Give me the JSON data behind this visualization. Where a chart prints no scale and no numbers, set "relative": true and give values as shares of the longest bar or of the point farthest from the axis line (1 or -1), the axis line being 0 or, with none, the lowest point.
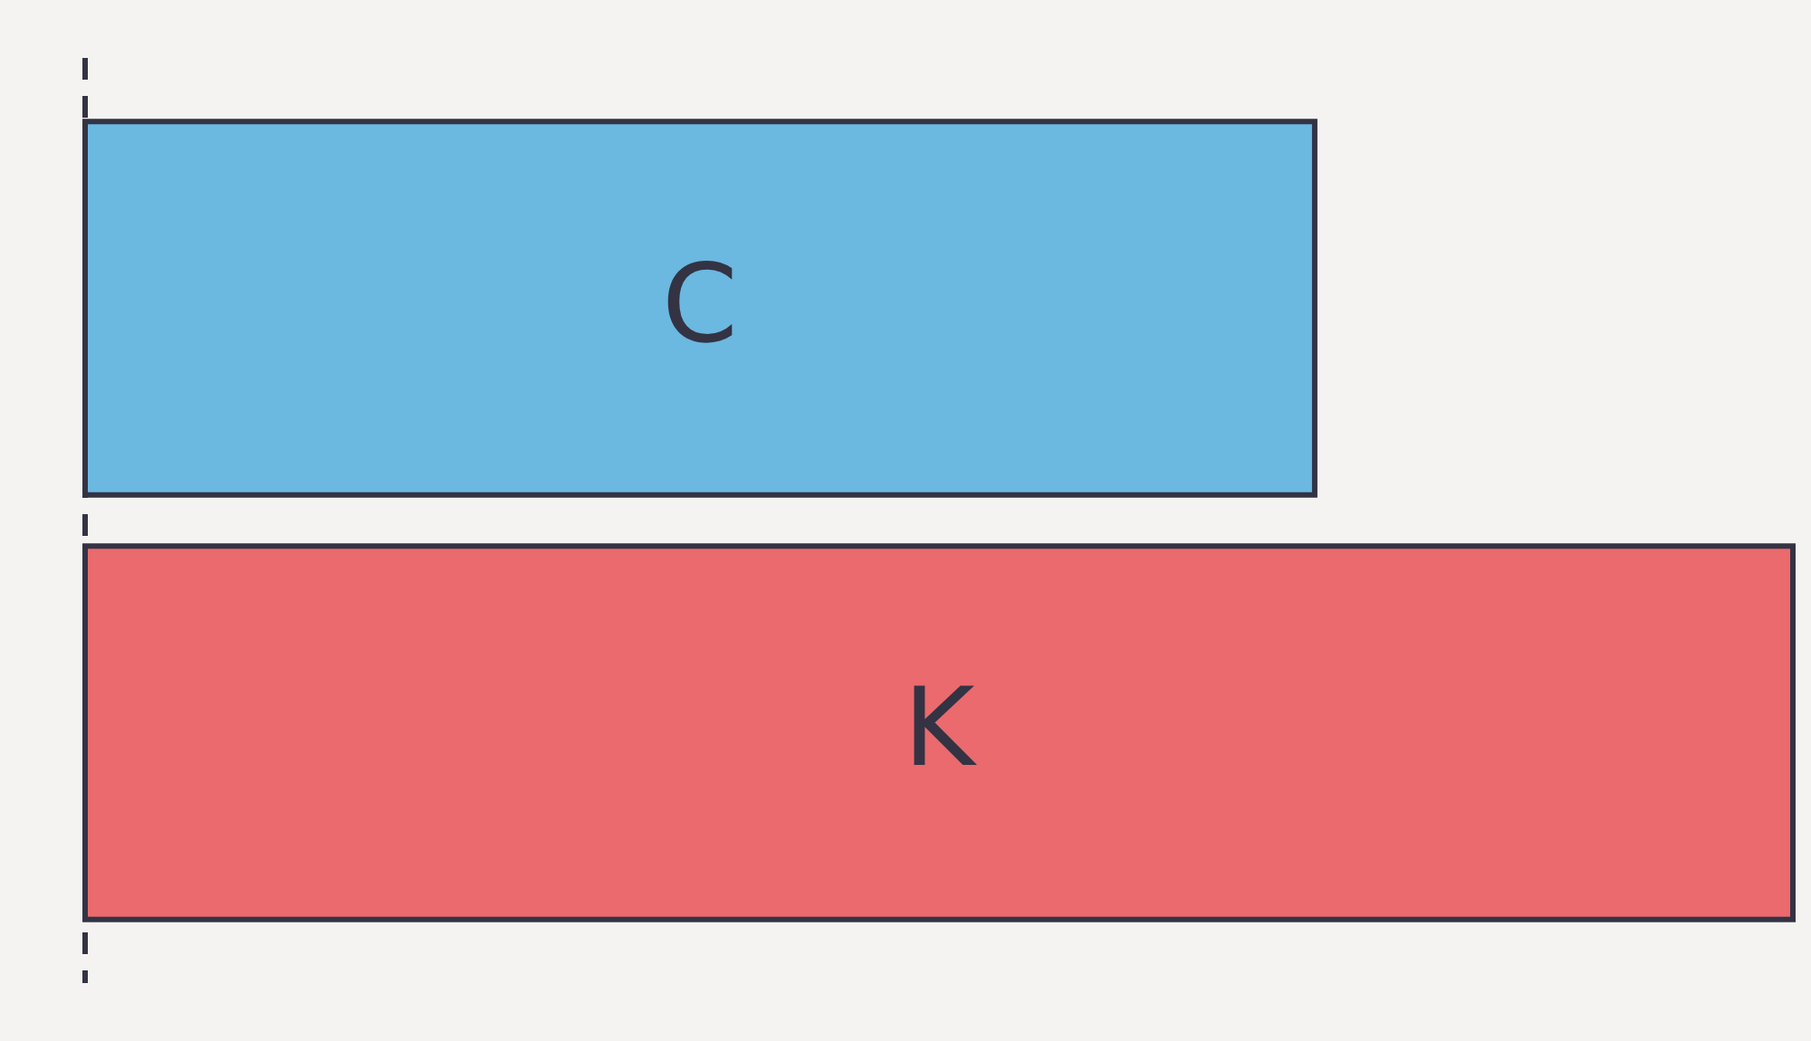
{
  "chart_data": {
    "type": "bar",
    "orientation": "horizontal",
    "relative": true,
    "categories": [
      "C",
      "K"
    ],
    "values": [
      0.72,
      1
    ],
    "colors": [
      "#6bb8e0",
      "#ea6a6e"
    ]
  }
}
